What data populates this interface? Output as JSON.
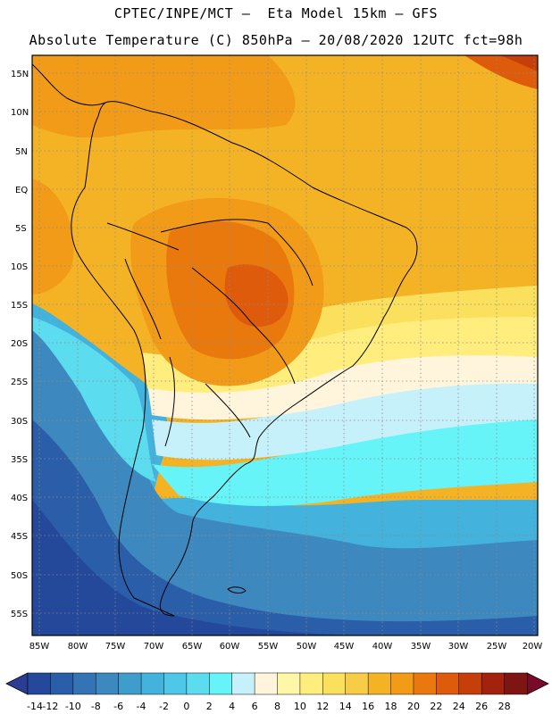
{
  "title": {
    "line1": "CPTEC/INPE/MCT –  Eta Model 15km – GFS",
    "line2": "Absolute Temperature (C) 850hPa – 20/08/2020 12UTC fct=98h"
  },
  "map": {
    "lat_ticks": [
      "15N",
      "10N",
      "5N",
      "EQ",
      "5S",
      "10S",
      "15S",
      "20S",
      "25S",
      "30S",
      "35S",
      "40S",
      "45S",
      "50S",
      "55S"
    ],
    "lon_ticks": [
      "85W",
      "80W",
      "75W",
      "70W",
      "65W",
      "60W",
      "55W",
      "50W",
      "45W",
      "40W",
      "35W",
      "30W",
      "25W",
      "20W"
    ]
  },
  "colorbar": {
    "labels": [
      "-14",
      "-12",
      "-10",
      "-8",
      "-6",
      "-4",
      "-2",
      "0",
      "2",
      "4",
      "6",
      "8",
      "10",
      "12",
      "14",
      "16",
      "18",
      "20",
      "22",
      "24",
      "26",
      "28"
    ],
    "colors": [
      "#24489a",
      "#2b5ea9",
      "#3474b5",
      "#3d89bf",
      "#3f9dcc",
      "#43b2dd",
      "#4fc7e8",
      "#5bdcef",
      "#66f4f8",
      "#c6f1fa",
      "#fff5dc",
      "#fff7a8",
      "#ffee7e",
      "#fbe05e",
      "#f7cc47",
      "#f4b325",
      "#f29b18",
      "#ea790d",
      "#dd5b0b",
      "#c63f0b",
      "#a3220e",
      "#7d1512"
    ],
    "low_color": "#2a3d92",
    "high_color": "#7a0a2a"
  }
}
